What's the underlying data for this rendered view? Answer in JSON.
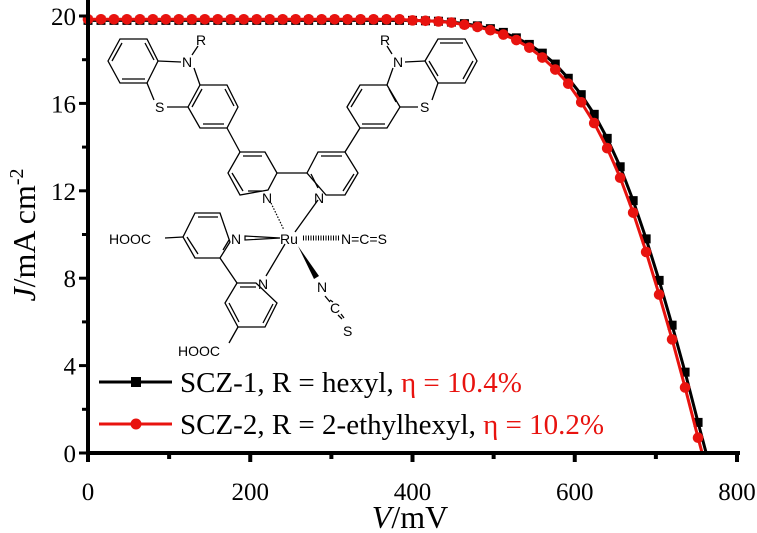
{
  "chart_data": {
    "type": "line",
    "xlabel_italic": "V",
    "xlabel_unit": "/mV",
    "ylabel_italic": "J",
    "ylabel_unit": "/mA cm",
    "ylabel_sup": "-2",
    "xlim": [
      0,
      800
    ],
    "ylim": [
      0,
      20
    ],
    "xticks": [
      "0",
      "200",
      "400",
      "600",
      "800"
    ],
    "yticks": [
      "0",
      "4",
      "8",
      "12",
      "16",
      "20"
    ],
    "grid": false,
    "legend_position": "bottom-left",
    "series": [
      {
        "name": "SCZ-1, R = hexyl, ",
        "eta_label": "η = 10.4%",
        "color": "#000000",
        "marker": "square",
        "x": [
          0,
          16,
          32,
          48,
          64,
          80,
          96,
          112,
          128,
          144,
          160,
          176,
          192,
          208,
          224,
          240,
          256,
          272,
          288,
          304,
          320,
          336,
          352,
          368,
          384,
          400,
          416,
          432,
          448,
          464,
          480,
          496,
          512,
          528,
          544,
          560,
          576,
          592,
          608,
          624,
          640,
          656,
          672,
          688,
          704,
          720,
          736,
          752,
          762
        ],
        "y": [
          19.8,
          19.8,
          19.8,
          19.8,
          19.8,
          19.8,
          19.8,
          19.8,
          19.8,
          19.8,
          19.8,
          19.8,
          19.8,
          19.8,
          19.8,
          19.8,
          19.8,
          19.8,
          19.8,
          19.8,
          19.8,
          19.8,
          19.8,
          19.8,
          19.8,
          19.8,
          19.78,
          19.76,
          19.72,
          19.65,
          19.55,
          19.42,
          19.25,
          19.0,
          18.7,
          18.3,
          17.8,
          17.15,
          16.4,
          15.5,
          14.4,
          13.1,
          11.55,
          9.8,
          7.9,
          5.85,
          3.7,
          1.4,
          0
        ]
      },
      {
        "name": "SCZ-2, R = 2-ethylhexyl, ",
        "eta_label": "η = 10.2%",
        "color": "#e8130f",
        "marker": "circle",
        "x": [
          0,
          16,
          32,
          48,
          64,
          80,
          96,
          112,
          128,
          144,
          160,
          176,
          192,
          208,
          224,
          240,
          256,
          272,
          288,
          304,
          320,
          336,
          352,
          368,
          384,
          400,
          416,
          432,
          448,
          464,
          480,
          496,
          512,
          528,
          544,
          560,
          576,
          592,
          608,
          624,
          640,
          656,
          672,
          688,
          704,
          720,
          736,
          752,
          757
        ],
        "y": [
          19.85,
          19.85,
          19.85,
          19.85,
          19.85,
          19.85,
          19.85,
          19.85,
          19.85,
          19.85,
          19.85,
          19.85,
          19.85,
          19.85,
          19.85,
          19.85,
          19.85,
          19.85,
          19.85,
          19.85,
          19.85,
          19.85,
          19.85,
          19.85,
          19.85,
          19.8,
          19.78,
          19.75,
          19.7,
          19.6,
          19.5,
          19.35,
          19.15,
          18.9,
          18.55,
          18.1,
          17.55,
          16.9,
          16.05,
          15.1,
          13.95,
          12.6,
          11.0,
          9.2,
          7.25,
          5.2,
          3.0,
          0.7,
          0
        ]
      }
    ]
  },
  "structure": {
    "R_left": "R",
    "R_right": "R",
    "N_ptz_left": "N",
    "N_ptz_right": "N",
    "S_ptz_left": "S",
    "S_ptz_right": "S",
    "N_bpy1": "N",
    "N_bpy2": "N",
    "N_bpy3": "N",
    "N_bpy4": "N",
    "Ru": "Ru",
    "NCS_horizontal": "N=C=S",
    "NCS_N": "N",
    "NCS_C": "C",
    "NCS_S": "S",
    "HOOC_1": "HOOC",
    "HOOC_2": "HOOC"
  }
}
